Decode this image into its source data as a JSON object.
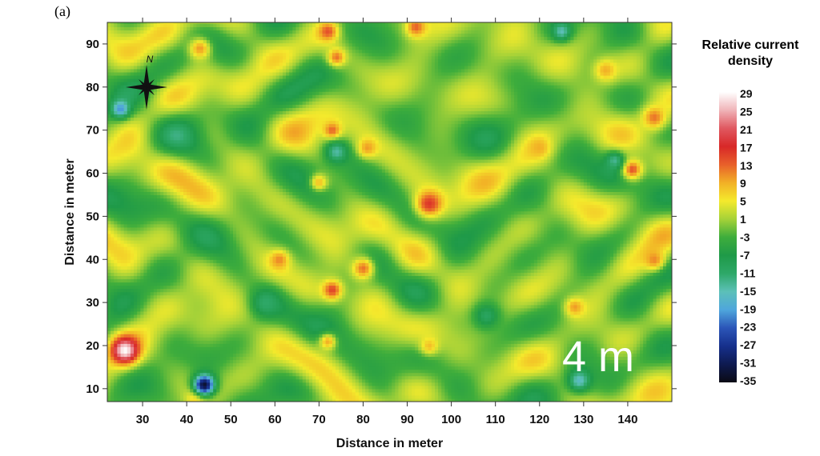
{
  "panel_label": "(a)",
  "chart_data": {
    "type": "heatmap",
    "title": "",
    "xlabel": "Distance in meter",
    "ylabel": "Distance in meter",
    "xlim": [
      22,
      150
    ],
    "ylim": [
      7,
      95
    ],
    "x_ticks": [
      30,
      40,
      50,
      60,
      70,
      80,
      90,
      100,
      110,
      120,
      130,
      140
    ],
    "y_ticks": [
      10,
      20,
      30,
      40,
      50,
      60,
      70,
      80,
      90
    ],
    "annotation": "4 m",
    "north_arrow_label": "N",
    "colorbar": {
      "title_line1": "Relative current",
      "title_line2": "density",
      "min": -35,
      "max": 29,
      "tick_labels": [
        "29",
        "25",
        "21",
        "17",
        "13",
        "9",
        "5",
        "1",
        "-3",
        "-7",
        "-11",
        "-15",
        "-19",
        "-23",
        "-27",
        "-31",
        "-35"
      ],
      "colors": [
        {
          "v": -35,
          "c": "#0a0a14"
        },
        {
          "v": -31,
          "c": "#0e1a50"
        },
        {
          "v": -27,
          "c": "#16308c"
        },
        {
          "v": -23,
          "c": "#2b55b8"
        },
        {
          "v": -19,
          "c": "#4fa6dc"
        },
        {
          "v": -15,
          "c": "#5cc0b8"
        },
        {
          "v": -11,
          "c": "#2ea868"
        },
        {
          "v": -7,
          "c": "#1f9a48"
        },
        {
          "v": -3,
          "c": "#3ead3c"
        },
        {
          "v": 1,
          "c": "#a6d238"
        },
        {
          "v": 5,
          "c": "#f4ea2c"
        },
        {
          "v": 9,
          "c": "#f2b026"
        },
        {
          "v": 13,
          "c": "#e8602a"
        },
        {
          "v": 17,
          "c": "#d82828"
        },
        {
          "v": 21,
          "c": "#e05860"
        },
        {
          "v": 25,
          "c": "#f0b4b8"
        },
        {
          "v": 29,
          "c": "#ffffff"
        }
      ]
    },
    "anomalies": [
      {
        "x": 26,
        "y": 19,
        "value": 29,
        "r": 3
      },
      {
        "x": 95,
        "y": 53,
        "value": 16,
        "r": 3.2
      },
      {
        "x": 73,
        "y": 33,
        "value": 15,
        "r": 2.2
      },
      {
        "x": 80,
        "y": 38,
        "value": 12,
        "r": 2.6
      },
      {
        "x": 61,
        "y": 40,
        "value": 11,
        "r": 2.2
      },
      {
        "x": 73,
        "y": 70,
        "value": 13,
        "r": 2
      },
      {
        "x": 81,
        "y": 66,
        "value": 10,
        "r": 2.2
      },
      {
        "x": 74,
        "y": 87,
        "value": 12,
        "r": 2
      },
      {
        "x": 72,
        "y": 93,
        "value": 14,
        "r": 2.2
      },
      {
        "x": 92,
        "y": 94,
        "value": 13,
        "r": 2.2
      },
      {
        "x": 141,
        "y": 61,
        "value": 14,
        "r": 2.4
      },
      {
        "x": 146,
        "y": 73,
        "value": 12,
        "r": 2.6
      },
      {
        "x": 146,
        "y": 40,
        "value": 11,
        "r": 2.4
      },
      {
        "x": 128,
        "y": 29,
        "value": 10,
        "r": 2.2
      },
      {
        "x": 43,
        "y": 89,
        "value": 10,
        "r": 2.6
      },
      {
        "x": 42,
        "y": 8,
        "value": 8,
        "r": 2
      },
      {
        "x": 72,
        "y": 21,
        "value": 9,
        "r": 2
      },
      {
        "x": 120,
        "y": 66,
        "value": 9,
        "r": 2.2
      },
      {
        "x": 135,
        "y": 84,
        "value": 9,
        "r": 2.6
      },
      {
        "x": 70,
        "y": 58,
        "value": 8,
        "r": 2
      },
      {
        "x": 95,
        "y": 20,
        "value": 8,
        "r": 2
      },
      {
        "x": 25,
        "y": 75,
        "value": -20,
        "r": 2
      },
      {
        "x": 44,
        "y": 11,
        "value": -33,
        "r": 2.4
      },
      {
        "x": 129,
        "y": 12,
        "value": -16,
        "r": 2.6
      },
      {
        "x": 74,
        "y": 65,
        "value": -14,
        "r": 2.4
      },
      {
        "x": 125,
        "y": 93,
        "value": -15,
        "r": 2
      },
      {
        "x": 137,
        "y": 63,
        "value": -13,
        "r": 2
      },
      {
        "x": 58,
        "y": 30,
        "value": -11,
        "r": 3
      },
      {
        "x": 108,
        "y": 27,
        "value": -10,
        "r": 3
      }
    ]
  }
}
